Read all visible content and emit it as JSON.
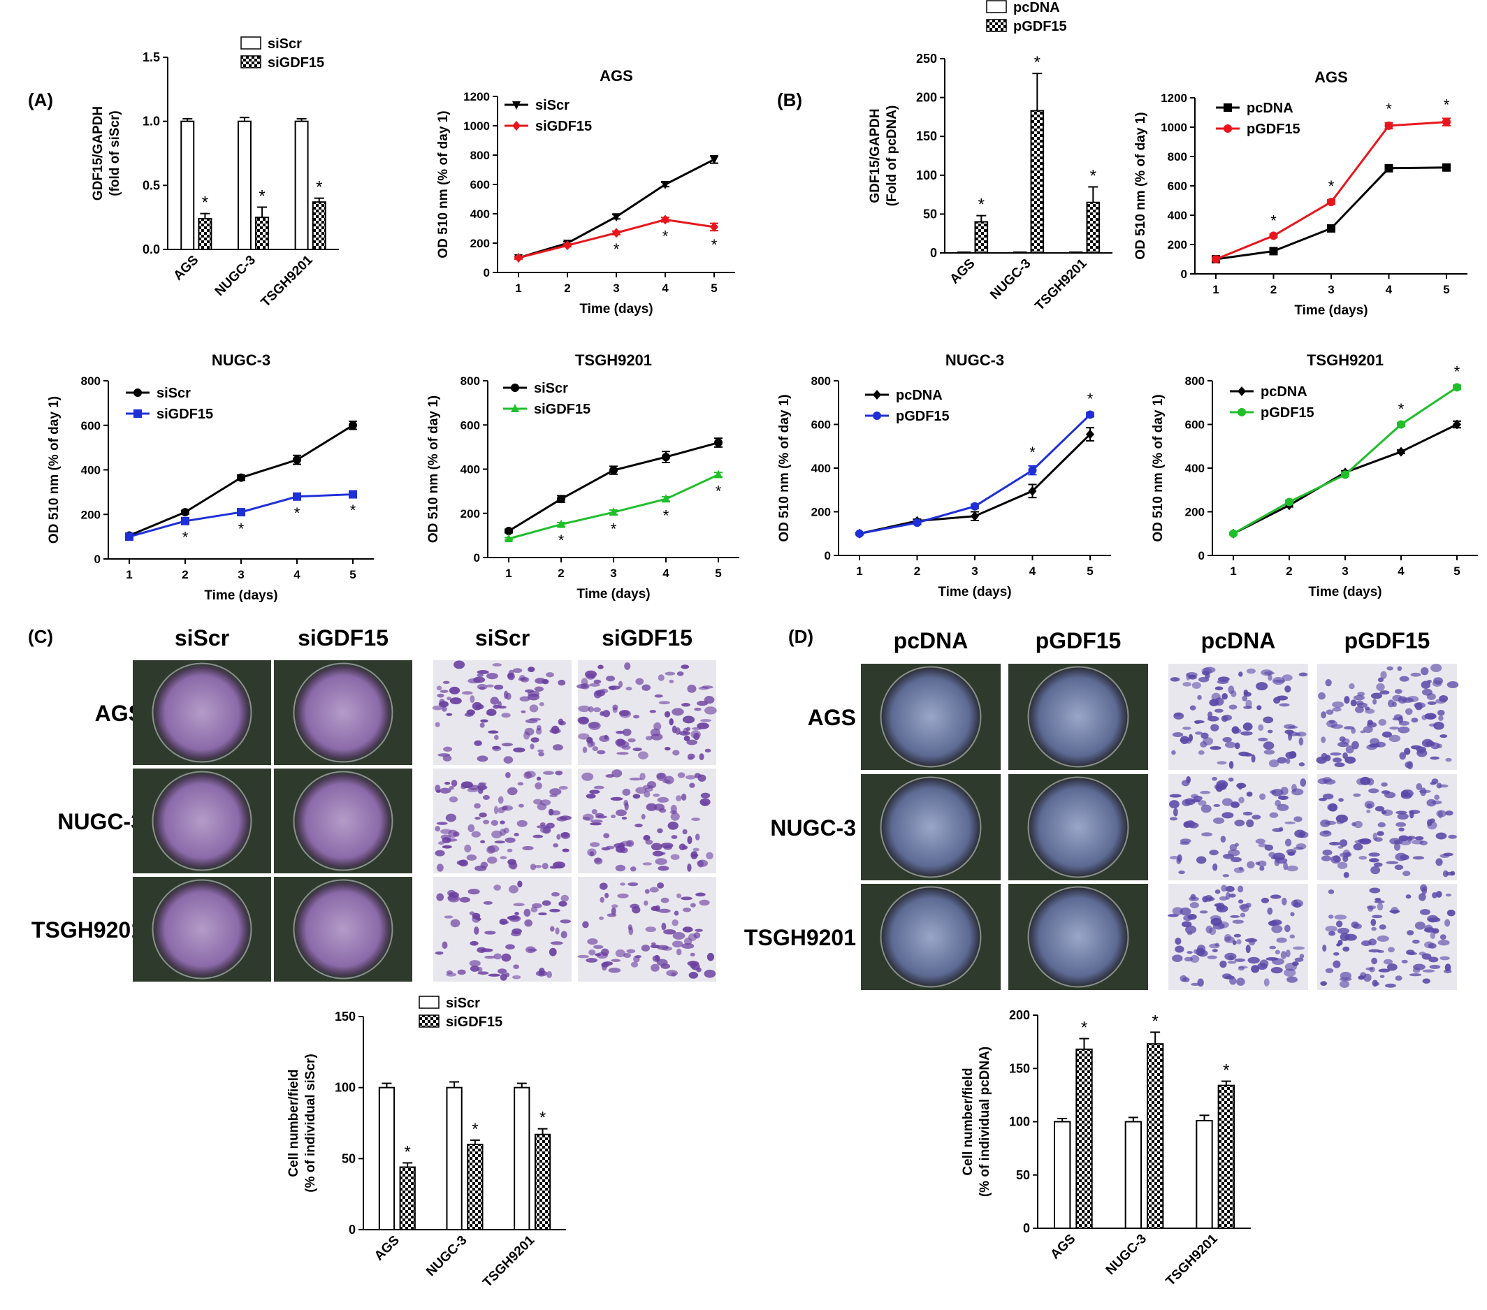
{
  "panel_labels": {
    "A": "(A)",
    "B": "(B)",
    "C": "(C)",
    "D": "(D)"
  },
  "colors": {
    "black": "#000000",
    "red": "#e8161c",
    "blue": "#1f2fd8",
    "green": "#1fbf2a",
    "crystal_violet": "#7a5aa6"
  },
  "chart_data": [
    {
      "id": "A-bar",
      "type": "bar",
      "title": "",
      "xlabel": "",
      "ylabel": "GDF15/GAPDH\n(fold of siScr)",
      "ylim": [
        0,
        1.5
      ],
      "yticks": [
        "0.0",
        "0.5",
        "1.0",
        "1.5"
      ],
      "categories": [
        "AGS",
        "NUGC-3",
        "TSGH9201"
      ],
      "series": [
        {
          "name": "siScr",
          "pattern": "white",
          "values": [
            1.0,
            1.0,
            1.0
          ],
          "err": [
            0.02,
            0.03,
            0.02
          ],
          "sig": [
            false,
            false,
            false
          ]
        },
        {
          "name": "siGDF15",
          "pattern": "checker",
          "values": [
            0.24,
            0.25,
            0.37
          ],
          "err": [
            0.04,
            0.08,
            0.03
          ],
          "sig": [
            true,
            true,
            true
          ]
        }
      ],
      "legend": "top"
    },
    {
      "id": "A-AGS",
      "type": "line",
      "title": "AGS",
      "xlabel": "Time (days)",
      "ylabel": "OD 510 nm (% of day 1)",
      "x": [
        1,
        2,
        3,
        4,
        5
      ],
      "ylim": [
        0,
        1200
      ],
      "yticks": [
        "0",
        "200",
        "400",
        "600",
        "800",
        "1000",
        "1200"
      ],
      "series": [
        {
          "name": "siScr",
          "color": "#000000",
          "marker": "tri-down",
          "values": [
            100,
            200,
            380,
            600,
            770
          ],
          "err": [
            8,
            10,
            15,
            15,
            25
          ]
        },
        {
          "name": "siGDF15",
          "color": "#e8161c",
          "marker": "diamond",
          "values": [
            100,
            185,
            270,
            360,
            310
          ],
          "err": [
            8,
            10,
            12,
            15,
            25
          ],
          "sig": [
            false,
            false,
            true,
            true,
            true
          ]
        }
      ]
    },
    {
      "id": "B-bar",
      "type": "bar",
      "title": "",
      "xlabel": "",
      "ylabel": "GDF15/GAPDH\n(Fold of pcDNA)",
      "ylim": [
        0,
        250
      ],
      "yticks": [
        "0",
        "50",
        "100",
        "150",
        "200",
        "250"
      ],
      "categories": [
        "AGS",
        "NUGC-3",
        "TSGH9201"
      ],
      "series": [
        {
          "name": "pcDNA",
          "pattern": "white",
          "values": [
            1,
            1,
            1
          ],
          "err": [
            0,
            0,
            0
          ],
          "sig": [
            false,
            false,
            false
          ]
        },
        {
          "name": "pGDF15",
          "pattern": "checker",
          "values": [
            40,
            183,
            65
          ],
          "err": [
            8,
            48,
            20
          ],
          "sig": [
            true,
            true,
            true
          ]
        }
      ],
      "legend": "top"
    },
    {
      "id": "B-AGS",
      "type": "line",
      "title": "AGS",
      "xlabel": "Time (days)",
      "ylabel": "OD 510 nm (% of day 1)",
      "x": [
        1,
        2,
        3,
        4,
        5
      ],
      "ylim": [
        0,
        1200
      ],
      "yticks": [
        "0",
        "200",
        "400",
        "600",
        "800",
        "1000",
        "1200"
      ],
      "series": [
        {
          "name": "pcDNA",
          "color": "#000000",
          "marker": "square",
          "values": [
            100,
            155,
            310,
            720,
            725
          ],
          "err": [
            5,
            8,
            10,
            10,
            10
          ]
        },
        {
          "name": "pGDF15",
          "color": "#e8161c",
          "marker": "circle",
          "values": [
            100,
            260,
            490,
            1010,
            1035
          ],
          "err": [
            5,
            10,
            15,
            20,
            25
          ],
          "sig": [
            false,
            true,
            true,
            true,
            true
          ]
        }
      ]
    },
    {
      "id": "A-NUGC3",
      "type": "line",
      "title": "NUGC-3",
      "xlabel": "Time (days)",
      "ylabel": "OD 510 nm (% of day 1)",
      "x": [
        1,
        2,
        3,
        4,
        5
      ],
      "ylim": [
        0,
        800
      ],
      "yticks": [
        "0",
        "200",
        "400",
        "600",
        "800"
      ],
      "series": [
        {
          "name": "siScr",
          "color": "#000000",
          "marker": "circle",
          "values": [
            105,
            210,
            365,
            445,
            600
          ],
          "err": [
            5,
            8,
            12,
            20,
            18
          ]
        },
        {
          "name": "siGDF15",
          "color": "#1f2fd8",
          "marker": "square",
          "values": [
            100,
            170,
            210,
            280,
            290
          ],
          "err": [
            5,
            8,
            10,
            10,
            8
          ],
          "sig": [
            false,
            true,
            true,
            true,
            true
          ]
        }
      ]
    },
    {
      "id": "A-TSGH9201",
      "type": "line",
      "title": "TSGH9201",
      "xlabel": "Time (days)",
      "ylabel": "OD 510 nm (% of day 1)",
      "x": [
        1,
        2,
        3,
        4,
        5
      ],
      "ylim": [
        0,
        800
      ],
      "yticks": [
        "0",
        "200",
        "400",
        "600",
        "800"
      ],
      "series": [
        {
          "name": "siScr",
          "color": "#000000",
          "marker": "circle",
          "values": [
            120,
            265,
            395,
            455,
            520
          ],
          "err": [
            8,
            15,
            18,
            25,
            20
          ]
        },
        {
          "name": "siGDF15",
          "color": "#1fbf2a",
          "marker": "triangle",
          "values": [
            85,
            150,
            205,
            265,
            375
          ],
          "err": [
            5,
            8,
            10,
            10,
            10
          ],
          "sig": [
            false,
            true,
            true,
            true,
            true
          ]
        }
      ]
    },
    {
      "id": "B-NUGC3",
      "type": "line",
      "title": "NUGC-3",
      "xlabel": "Time (days)",
      "ylabel": "OD 510 nm (% of day 1)",
      "x": [
        1,
        2,
        3,
        4,
        5
      ],
      "ylim": [
        0,
        800
      ],
      "yticks": [
        "0",
        "200",
        "400",
        "600",
        "800"
      ],
      "series": [
        {
          "name": "pcDNA",
          "color": "#000000",
          "marker": "diamond",
          "values": [
            100,
            158,
            180,
            295,
            555
          ],
          "err": [
            5,
            8,
            20,
            30,
            30
          ]
        },
        {
          "name": "pGDF15",
          "color": "#1f2fd8",
          "marker": "circle",
          "values": [
            100,
            150,
            225,
            390,
            645
          ],
          "err": [
            5,
            8,
            10,
            20,
            10
          ],
          "sig": [
            false,
            false,
            false,
            true,
            true
          ]
        }
      ]
    },
    {
      "id": "B-TSGH9201",
      "type": "line",
      "title": "TSGH9201",
      "xlabel": "Time (days)",
      "ylabel": "OD 510 nm (% of day 1)",
      "x": [
        1,
        2,
        3,
        4,
        5
      ],
      "ylim": [
        0,
        800
      ],
      "yticks": [
        "0",
        "200",
        "400",
        "600",
        "800"
      ],
      "series": [
        {
          "name": "pcDNA",
          "color": "#000000",
          "marker": "diamond",
          "values": [
            100,
            230,
            380,
            475,
            600
          ],
          "err": [
            5,
            8,
            8,
            8,
            15
          ]
        },
        {
          "name": "pGDF15",
          "color": "#1fbf2a",
          "marker": "circle",
          "values": [
            100,
            245,
            370,
            600,
            770
          ],
          "err": [
            5,
            8,
            8,
            8,
            10
          ],
          "sig": [
            false,
            false,
            false,
            true,
            true
          ]
        }
      ]
    },
    {
      "id": "C-bar",
      "type": "bar",
      "title": "",
      "xlabel": "",
      "ylabel": "Cell number/field\n(% of individual siScr)",
      "ylim": [
        0,
        150
      ],
      "yticks": [
        "0",
        "50",
        "100",
        "150"
      ],
      "categories": [
        "AGS",
        "NUGC-3",
        "TSGH9201"
      ],
      "series": [
        {
          "name": "siScr",
          "pattern": "white",
          "values": [
            100,
            100,
            100
          ],
          "err": [
            3,
            4,
            3
          ],
          "sig": [
            false,
            false,
            false
          ]
        },
        {
          "name": "siGDF15",
          "pattern": "checker",
          "values": [
            44,
            60,
            67
          ],
          "err": [
            3,
            3,
            4
          ],
          "sig": [
            true,
            true,
            true
          ]
        }
      ],
      "legend": "top-right"
    },
    {
      "id": "D-bar",
      "type": "bar",
      "title": "",
      "xlabel": "",
      "ylabel": "Cell number/field\n(% of individual pcDNA)",
      "ylim": [
        0,
        200
      ],
      "yticks": [
        "0",
        "50",
        "100",
        "150",
        "200"
      ],
      "categories": [
        "AGS",
        "NUGC-3",
        "TSGH9201"
      ],
      "series": [
        {
          "name": "pcDNA",
          "pattern": "white",
          "values": [
            100,
            100,
            101
          ],
          "err": [
            3,
            4,
            5
          ],
          "sig": [
            false,
            false,
            false
          ]
        },
        {
          "name": "pGDF15",
          "pattern": "checker",
          "values": [
            168,
            173,
            134
          ],
          "err": [
            10,
            11,
            4
          ],
          "sig": [
            true,
            true,
            true
          ]
        }
      ],
      "legend": "none"
    }
  ],
  "images": {
    "C": {
      "col_headers": [
        "siScr",
        "siGDF15",
        "siScr",
        "siGDF15"
      ],
      "row_labels": [
        "AGS",
        "NUGC-3",
        "TSGH9201"
      ],
      "colony_tint": "#8a6aa8",
      "invasion_tint": "#6a3fa0"
    },
    "D": {
      "col_headers": [
        "pcDNA",
        "pGDF15",
        "pcDNA",
        "pGDF15"
      ],
      "row_labels": [
        "AGS",
        "NUGC-3",
        "TSGH9201"
      ],
      "colony_tint": "#5a6a9a",
      "invasion_tint": "#5a48a8"
    }
  }
}
